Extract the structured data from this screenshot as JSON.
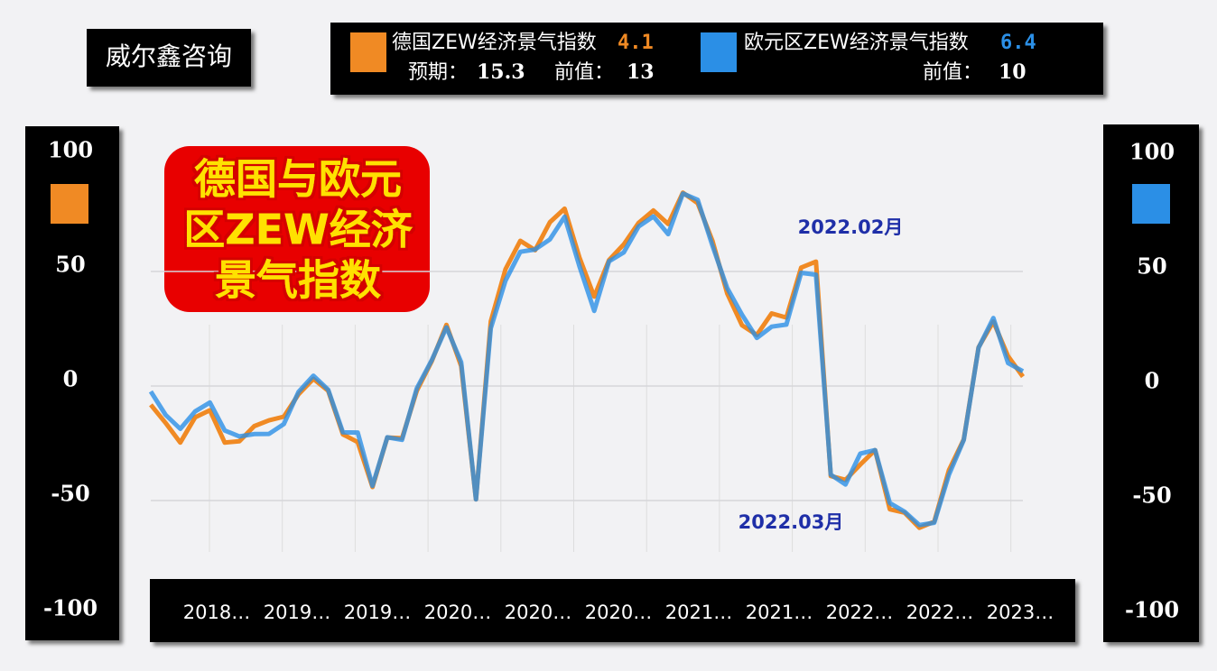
{
  "chart_data": {
    "type": "line",
    "brand": "威尔鑫咨询",
    "title_lines": [
      "德国与欧元",
      "区ZEW经济",
      "景气指数"
    ],
    "x_labels": [
      "2018…",
      "2019…",
      "2019…",
      "2020…",
      "2020…",
      "2020…",
      "2021…",
      "2021…",
      "2022…",
      "2022…",
      "2023…"
    ],
    "series": [
      {
        "name": "德国ZEW经济景气指数",
        "color": "#f08a24",
        "latest": 4.1,
        "expected_label": "预期：",
        "expected": 15.3,
        "previous_label": "前值：",
        "previous": 13,
        "values": [
          -8.2,
          -16.1,
          -24.7,
          -13.7,
          -10.6,
          -24.7,
          -24.1,
          -17.5,
          -15.0,
          -13.4,
          -3.6,
          3.1,
          -2.1,
          -21.1,
          -24.5,
          -44.1,
          -22.5,
          -22.8,
          -2.1,
          10.7,
          26.7,
          8.7,
          -49.5,
          28.2,
          51.0,
          63.4,
          59.3,
          71.5,
          77.4,
          56.1,
          39.0,
          55.0,
          61.8,
          71.2,
          76.6,
          70.7,
          84.4,
          79.8,
          63.3,
          40.4,
          26.5,
          22.3,
          31.7,
          29.9,
          51.7,
          54.3,
          -39.3,
          -41.0,
          -34.3,
          -28.0,
          -53.8,
          -55.3,
          -61.9,
          -59.2,
          -36.7,
          -23.3,
          16.9,
          28.1,
          13.0,
          4.1
        ]
      },
      {
        "name": "欧元区ZEW经济景气指数",
        "color": "#2b8fe6",
        "latest": 6.4,
        "previous_label": "前值：",
        "previous": 10,
        "axis": "y2",
        "values": [
          -2.4,
          -12.6,
          -18.7,
          -11.1,
          -7.2,
          -19.4,
          -22.0,
          -21.0,
          -20.9,
          -16.6,
          -2.5,
          4.5,
          -1.6,
          -20.2,
          -20.3,
          -43.6,
          -22.4,
          -23.5,
          -1.0,
          11.2,
          25.6,
          10.4,
          -49.5,
          25.2,
          46.0,
          58.6,
          59.6,
          64.0,
          73.9,
          52.3,
          32.8,
          54.4,
          58.3,
          69.6,
          74.0,
          66.3,
          84.0,
          81.3,
          61.2,
          42.7,
          31.1,
          21.0,
          25.9,
          26.8,
          49.4,
          48.6,
          -38.7,
          -43.0,
          -29.5,
          -28.0,
          -51.1,
          -54.9,
          -60.7,
          -59.7,
          -38.7,
          -23.6,
          16.7,
          29.7,
          10.0,
          6.4
        ]
      }
    ],
    "annotations": [
      {
        "text": "2022.02月",
        "at": 45
      },
      {
        "text": "2022.03月",
        "at": 46
      }
    ],
    "ylim": [
      -100,
      100
    ],
    "yticks": [
      -100,
      -50,
      0,
      50,
      100
    ],
    "y2lim": [
      -100,
      100
    ],
    "y2ticks": [
      -100,
      -50,
      0,
      50,
      100
    ],
    "grid": true
  }
}
